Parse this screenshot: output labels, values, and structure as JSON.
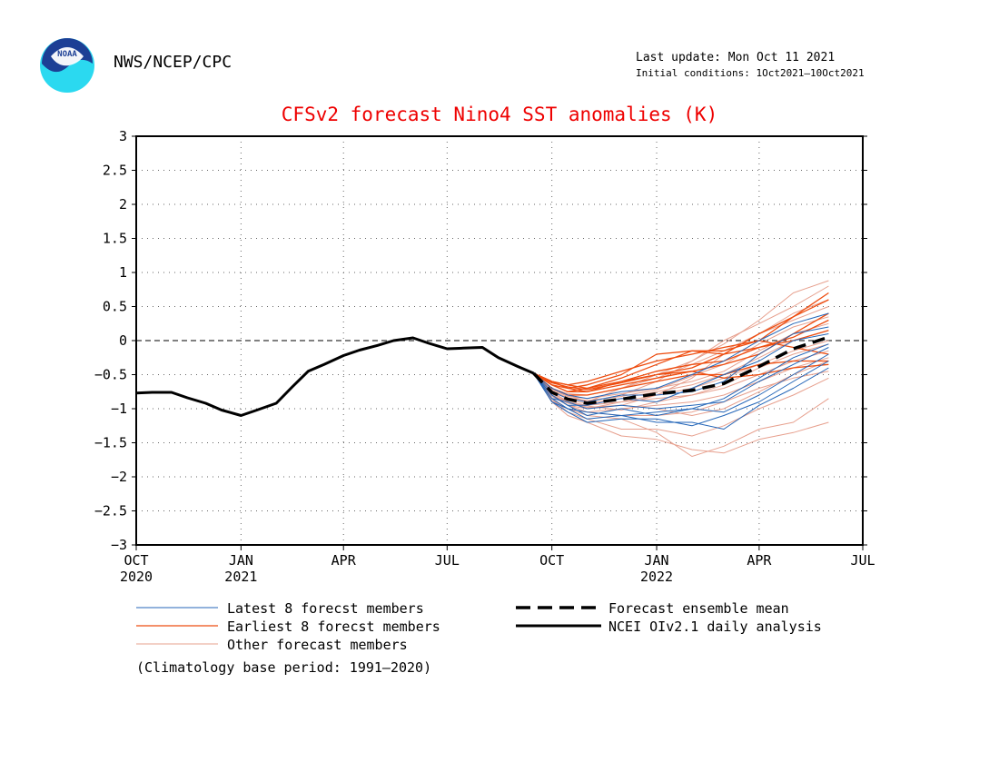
{
  "header": {
    "logo_text": "NOAA",
    "org": "NWS/NCEP/CPC",
    "last_update": "Last update: Mon Oct 11 2021",
    "initial_conditions": "Initial conditions: 1Oct2021–10Oct2021"
  },
  "colors": {
    "title": "#ee0000",
    "latest": "#2466b8",
    "earliest": "#ee4d10",
    "other": "#e7a08e",
    "ensemble_mean": "#000000",
    "analysis": "#000000",
    "logo_blue": "#1c3f95",
    "logo_cyan": "#2bd9f0"
  },
  "chart_data": {
    "type": "line",
    "title": "CFSv2 forecast Nino4 SST anomalies (K)",
    "xlabel": "",
    "ylabel": "",
    "x_range": [
      "2020-10-01",
      "2022-07-01"
    ],
    "ylim": [
      -3,
      3
    ],
    "yticks": [
      -3,
      -2.5,
      -2,
      -1.5,
      -1,
      -0.5,
      0,
      0.5,
      1,
      1.5,
      2,
      2.5,
      3
    ],
    "ytick_labels": [
      "−3",
      "−2.5",
      "−2",
      "−1.5",
      "−1",
      "−0.5",
      "0",
      "0.5",
      "1",
      "1.5",
      "2",
      "2.5",
      "3"
    ],
    "xticks": [
      {
        "date": "2020-10-01",
        "month": "OCT",
        "year": "2020"
      },
      {
        "date": "2021-01-01",
        "month": "JAN",
        "year": "2021"
      },
      {
        "date": "2021-04-01",
        "month": "APR",
        "year": ""
      },
      {
        "date": "2021-07-01",
        "month": "JUL",
        "year": ""
      },
      {
        "date": "2021-10-01",
        "month": "OCT",
        "year": ""
      },
      {
        "date": "2022-01-01",
        "month": "JAN",
        "year": "2022"
      },
      {
        "date": "2022-04-01",
        "month": "APR",
        "year": ""
      },
      {
        "date": "2022-07-01",
        "month": "JUL",
        "year": ""
      }
    ],
    "grid": true,
    "legend_position": "bottom",
    "forecast_dates": [
      "2021-09-15",
      "2021-10-01",
      "2021-10-15",
      "2021-11-01",
      "2021-12-01",
      "2022-01-01",
      "2022-02-01",
      "2022-03-01",
      "2022-04-01",
      "2022-05-01",
      "2022-06-01"
    ],
    "legend": {
      "latest": "Latest 8 forecst members",
      "earliest": "Earliest 8 forecst members",
      "other": "Other forecast members",
      "ensemble_mean": "Forecast ensemble mean",
      "analysis": "NCEI OIv2.1 daily analysis"
    },
    "climatology_note": "(Climatology base period: 1991–2020)",
    "series": [
      {
        "name": "NCEI OIv2.1 daily analysis",
        "group": "analysis",
        "dates": [
          "2020-10-01",
          "2020-10-15",
          "2020-11-01",
          "2020-11-15",
          "2020-12-01",
          "2020-12-15",
          "2021-01-01",
          "2021-01-15",
          "2021-02-01",
          "2021-02-15",
          "2021-03-01",
          "2021-03-15",
          "2021-04-01",
          "2021-04-15",
          "2021-05-01",
          "2021-05-15",
          "2021-06-01",
          "2021-06-15",
          "2021-07-01",
          "2021-07-15",
          "2021-08-01",
          "2021-08-15",
          "2021-09-01",
          "2021-09-15"
        ],
        "values": [
          -0.77,
          -0.76,
          -0.76,
          -0.84,
          -0.92,
          -1.02,
          -1.1,
          -1.02,
          -0.92,
          -0.68,
          -0.45,
          -0.35,
          -0.22,
          -0.14,
          -0.07,
          0.0,
          0.04,
          -0.04,
          -0.12,
          -0.11,
          -0.1,
          -0.25,
          -0.38,
          -0.48
        ]
      },
      {
        "name": "Forecast ensemble mean",
        "group": "mean",
        "dates": [
          "2021-09-15",
          "2021-10-01",
          "2021-10-15",
          "2021-11-01",
          "2021-12-01",
          "2022-01-01",
          "2022-02-01",
          "2022-03-01",
          "2022-04-01",
          "2022-05-01",
          "2022-06-01"
        ],
        "values": [
          -0.48,
          -0.76,
          -0.86,
          -0.92,
          -0.86,
          -0.78,
          -0.73,
          -0.63,
          -0.38,
          -0.12,
          0.05
        ]
      },
      {
        "group": "latest",
        "values": [
          -0.48,
          -0.85,
          -1.0,
          -1.15,
          -1.1,
          -1.2,
          -1.2,
          -1.3,
          -0.95,
          -0.7,
          -0.4
        ]
      },
      {
        "group": "latest",
        "values": [
          -0.48,
          -0.9,
          -1.05,
          -1.2,
          -1.15,
          -1.15,
          -1.25,
          -1.1,
          -0.9,
          -0.6,
          -0.3
        ]
      },
      {
        "group": "latest",
        "values": [
          -0.48,
          -0.8,
          -0.95,
          -1.1,
          -1.0,
          -1.1,
          -1.0,
          -1.05,
          -0.8,
          -0.5,
          -0.2
        ]
      },
      {
        "group": "latest",
        "values": [
          -0.48,
          -0.85,
          -0.9,
          -1.0,
          -0.95,
          -1.0,
          -0.95,
          -0.9,
          -0.6,
          -0.35,
          -0.1
        ]
      },
      {
        "group": "latest",
        "values": [
          -0.48,
          -0.75,
          -0.85,
          -0.9,
          -0.8,
          -0.8,
          -0.75,
          -0.6,
          -0.2,
          0.1,
          0.2
        ]
      },
      {
        "group": "latest",
        "values": [
          -0.48,
          -0.8,
          -0.95,
          -0.95,
          -0.85,
          -0.9,
          -0.7,
          -0.5,
          -0.3,
          0.0,
          0.1
        ]
      },
      {
        "group": "latest",
        "values": [
          -0.48,
          -0.9,
          -1.0,
          -1.05,
          -1.1,
          -1.05,
          -1.0,
          -0.85,
          -0.55,
          -0.25,
          -0.05
        ]
      },
      {
        "group": "latest",
        "values": [
          -0.48,
          -0.7,
          -0.8,
          -0.85,
          -0.75,
          -0.7,
          -0.5,
          -0.3,
          0.0,
          0.25,
          0.4
        ]
      },
      {
        "group": "earliest",
        "values": [
          -0.48,
          -0.6,
          -0.65,
          -0.7,
          -0.6,
          -0.5,
          -0.4,
          -0.2,
          0.1,
          0.35,
          0.7
        ]
      },
      {
        "group": "earliest",
        "values": [
          -0.48,
          -0.65,
          -0.75,
          -0.7,
          -0.55,
          -0.35,
          -0.15,
          -0.15,
          0.0,
          0.35,
          0.6
        ]
      },
      {
        "group": "earliest",
        "values": [
          -0.48,
          -0.6,
          -0.7,
          -0.65,
          -0.5,
          -0.2,
          -0.15,
          -0.2,
          -0.1,
          0.0,
          0.15
        ]
      },
      {
        "group": "earliest",
        "values": [
          -0.48,
          -0.65,
          -0.75,
          -0.75,
          -0.6,
          -0.45,
          -0.35,
          -0.3,
          -0.1,
          0.05,
          0.3
        ]
      },
      {
        "group": "earliest",
        "values": [
          -0.48,
          -0.7,
          -0.8,
          -0.8,
          -0.7,
          -0.6,
          -0.5,
          -0.5,
          -0.35,
          -0.3,
          -0.3
        ]
      },
      {
        "group": "earliest",
        "values": [
          -0.48,
          -0.6,
          -0.65,
          -0.6,
          -0.45,
          -0.3,
          -0.2,
          -0.1,
          0.0,
          -0.1,
          -0.2
        ]
      },
      {
        "group": "earliest",
        "values": [
          -0.48,
          -0.65,
          -0.7,
          -0.75,
          -0.65,
          -0.55,
          -0.45,
          -0.35,
          -0.2,
          0.1,
          0.4
        ]
      },
      {
        "group": "earliest",
        "values": [
          -0.48,
          -0.62,
          -0.68,
          -0.72,
          -0.62,
          -0.5,
          -0.45,
          -0.55,
          -0.5,
          -0.4,
          -0.35
        ]
      },
      {
        "group": "other",
        "values": [
          -0.48,
          -0.7,
          -0.8,
          -0.9,
          -0.7,
          -0.5,
          -0.3,
          -0.05,
          0.3,
          0.7,
          0.88
        ]
      },
      {
        "group": "other",
        "values": [
          -0.48,
          -0.75,
          -0.85,
          -0.9,
          -0.8,
          -0.6,
          -0.3,
          0.0,
          0.25,
          0.5,
          0.8
        ]
      },
      {
        "group": "other",
        "values": [
          -0.48,
          -0.8,
          -0.9,
          -1.0,
          -0.95,
          -0.8,
          -0.55,
          -0.2,
          0.1,
          0.4,
          0.6
        ]
      },
      {
        "group": "other",
        "values": [
          -0.48,
          -0.85,
          -1.0,
          -1.1,
          -1.15,
          -1.35,
          -1.7,
          -1.55,
          -1.3,
          -1.2,
          -0.85
        ]
      },
      {
        "group": "other",
        "values": [
          -0.48,
          -0.9,
          -1.1,
          -1.2,
          -1.4,
          -1.45,
          -1.6,
          -1.65,
          -1.45,
          -1.35,
          -1.2
        ]
      },
      {
        "group": "other",
        "values": [
          -0.48,
          -0.85,
          -1.05,
          -1.15,
          -1.3,
          -1.3,
          -1.4,
          -1.25,
          -1.0,
          -0.8,
          -0.55
        ]
      },
      {
        "group": "other",
        "values": [
          -0.48,
          -0.8,
          -0.95,
          -1.05,
          -1.1,
          -1.1,
          -1.05,
          -0.9,
          -0.7,
          -0.55,
          -0.45
        ]
      },
      {
        "group": "other",
        "values": [
          -0.48,
          -0.75,
          -0.9,
          -0.95,
          -0.9,
          -0.85,
          -0.8,
          -0.65,
          -0.4,
          -0.2,
          -0.05
        ]
      },
      {
        "group": "other",
        "values": [
          -0.48,
          -0.72,
          -0.82,
          -0.85,
          -0.78,
          -0.7,
          -0.6,
          -0.45,
          -0.15,
          0.1,
          0.25
        ]
      },
      {
        "group": "other",
        "values": [
          -0.48,
          -0.78,
          -0.88,
          -0.92,
          -0.85,
          -0.75,
          -0.65,
          -0.5,
          -0.25,
          0.0,
          0.15
        ]
      },
      {
        "group": "other",
        "values": [
          -0.48,
          -0.82,
          -0.95,
          -1.0,
          -0.9,
          -0.8,
          -0.7,
          -0.55,
          -0.35,
          -0.15,
          0.0
        ]
      },
      {
        "group": "other",
        "values": [
          -0.48,
          -0.7,
          -0.78,
          -0.8,
          -0.7,
          -0.55,
          -0.35,
          -0.15,
          0.1,
          0.3,
          0.5
        ]
      },
      {
        "group": "other",
        "values": [
          -0.48,
          -0.88,
          -1.0,
          -1.05,
          -1.0,
          -0.95,
          -0.9,
          -0.8,
          -0.6,
          -0.4,
          -0.25
        ]
      },
      {
        "group": "other",
        "values": [
          -0.48,
          -0.76,
          -0.9,
          -0.98,
          -0.95,
          -1.0,
          -1.1,
          -1.0,
          -0.75,
          -0.5,
          -0.3
        ]
      },
      {
        "group": "other",
        "values": [
          -0.48,
          -0.74,
          -0.84,
          -0.88,
          -0.82,
          -0.72,
          -0.52,
          -0.35,
          -0.05,
          0.2,
          0.35
        ]
      },
      {
        "group": "other",
        "values": [
          -0.48,
          -0.8,
          -0.92,
          -0.96,
          -1.02,
          -0.9,
          -0.8,
          -0.7,
          -0.5,
          -0.3,
          -0.15
        ]
      }
    ]
  }
}
